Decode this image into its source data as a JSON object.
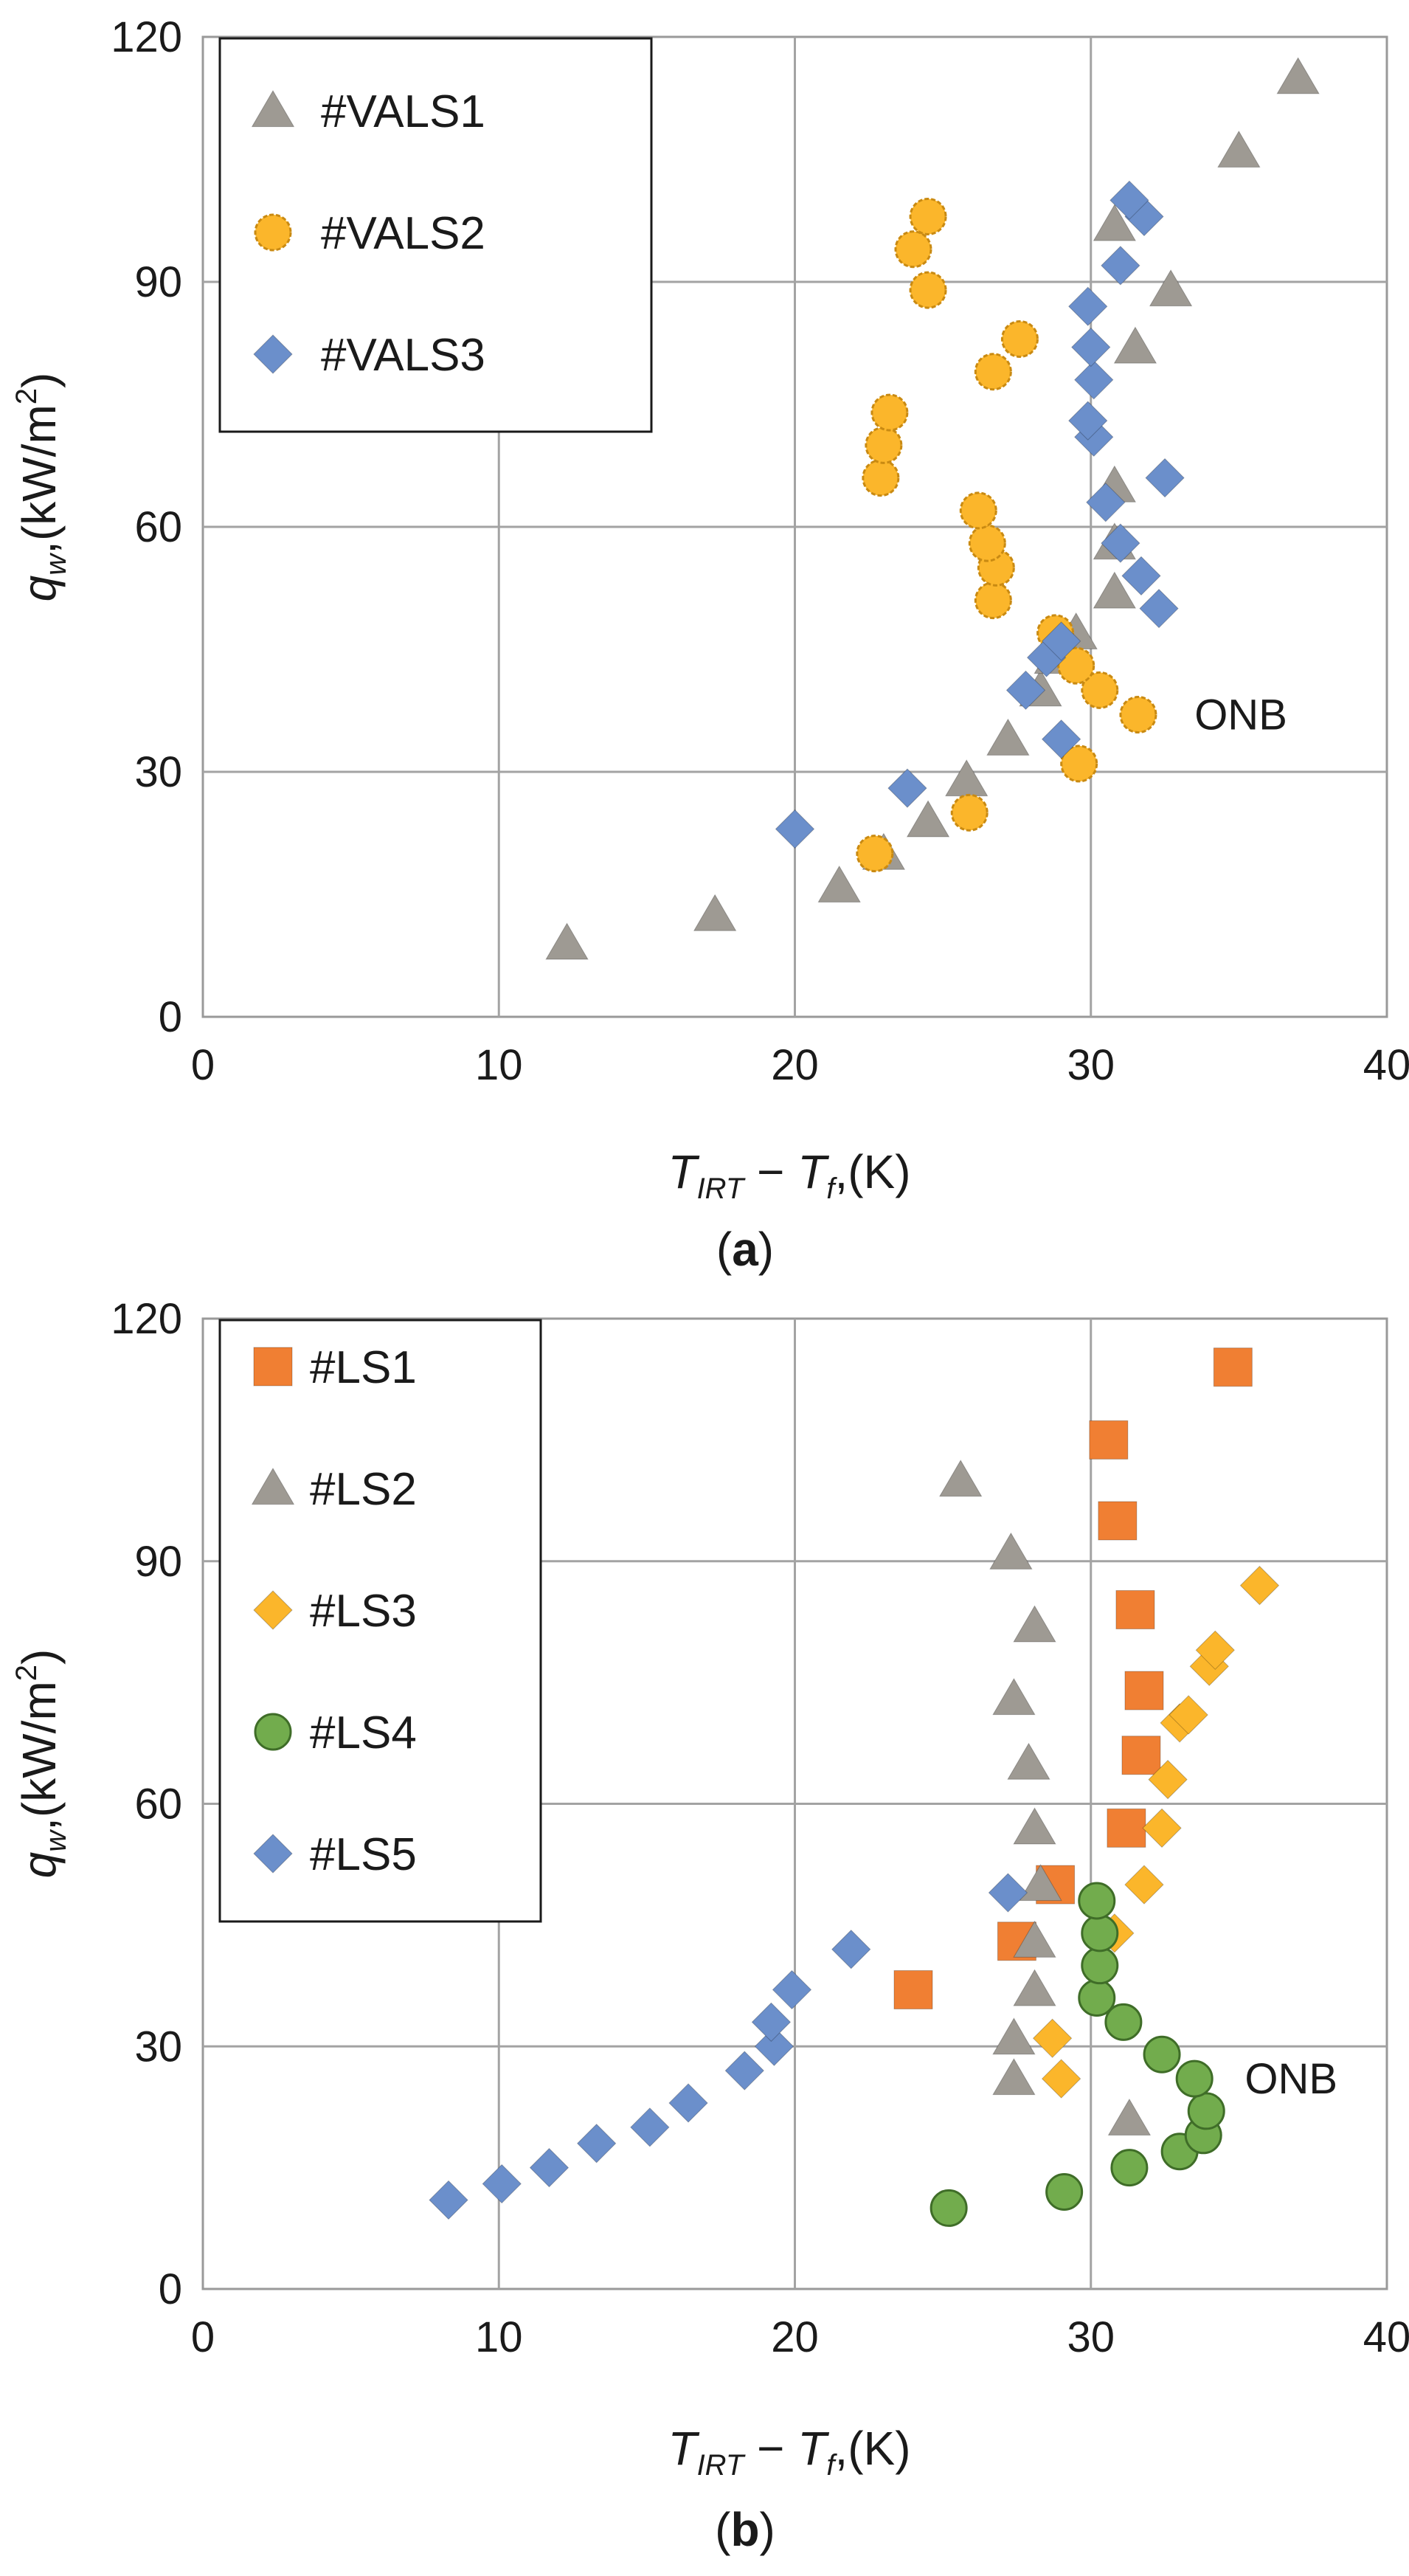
{
  "chart_data": [
    {
      "id": "a",
      "type": "scatter",
      "caption_letter": "a",
      "xlabel": {
        "T": "T",
        "sub1": "IRT",
        "dash": " − ",
        "T2": "T",
        "sub2": "f",
        "unit": ",(K)"
      },
      "ylabel": {
        "q": "q",
        "sub": "w",
        "unit": ",(kW/m",
        "sup": "2",
        "close": ")"
      },
      "xlim": [
        0,
        40
      ],
      "ylim": [
        0,
        120
      ],
      "xticks": [
        0,
        10,
        20,
        30,
        40
      ],
      "yticks": [
        0,
        30,
        60,
        90,
        120
      ],
      "grid": true,
      "legend_position": "top-left",
      "annotation": {
        "text": "ONB",
        "x": 33.5,
        "y": 37
      },
      "series": [
        {
          "name": "#VALS1",
          "marker": "triangle",
          "color": "#9e9a93",
          "points": [
            [
              12.3,
              9
            ],
            [
              17.3,
              12.5
            ],
            [
              21.5,
              16
            ],
            [
              23,
              20
            ],
            [
              24.5,
              24
            ],
            [
              25.8,
              29
            ],
            [
              27.2,
              34
            ],
            [
              28.3,
              40
            ],
            [
              28.8,
              44
            ],
            [
              29.5,
              47
            ],
            [
              30.8,
              52
            ],
            [
              30.8,
              58
            ],
            [
              30.8,
              65
            ],
            [
              31.5,
              82
            ],
            [
              32.7,
              89
            ],
            [
              30.8,
              97
            ],
            [
              35,
              106
            ],
            [
              37,
              115
            ]
          ]
        },
        {
          "name": "#VALS2",
          "marker": "circle",
          "color": "#fbb62b",
          "points": [
            [
              22.7,
              20
            ],
            [
              25.9,
              25
            ],
            [
              29.6,
              31
            ],
            [
              31.6,
              37
            ],
            [
              30.3,
              40
            ],
            [
              29.5,
              43
            ],
            [
              28.8,
              47
            ],
            [
              26.7,
              51
            ],
            [
              26.8,
              55
            ],
            [
              26.5,
              58
            ],
            [
              26.2,
              62
            ],
            [
              22.9,
              66
            ],
            [
              23,
              70
            ],
            [
              23.2,
              74
            ],
            [
              26.7,
              79
            ],
            [
              27.6,
              83
            ],
            [
              24.5,
              89
            ],
            [
              24,
              94
            ],
            [
              24.5,
              98
            ]
          ]
        },
        {
          "name": "#VALS3",
          "marker": "diamond",
          "color": "#6b8fcb",
          "points": [
            [
              20,
              23
            ],
            [
              23.8,
              28
            ],
            [
              29,
              34
            ],
            [
              27.8,
              40
            ],
            [
              28.5,
              44
            ],
            [
              29,
              46
            ],
            [
              32.3,
              50
            ],
            [
              31.7,
              54
            ],
            [
              31,
              58
            ],
            [
              30.5,
              63
            ],
            [
              32.5,
              66
            ],
            [
              30.1,
              71
            ],
            [
              29.9,
              73
            ],
            [
              30.1,
              78
            ],
            [
              30,
              82
            ],
            [
              29.9,
              87
            ],
            [
              31,
              92
            ],
            [
              31.8,
              98
            ],
            [
              31.3,
              100
            ]
          ]
        }
      ]
    },
    {
      "id": "b",
      "type": "scatter",
      "caption_letter": "b",
      "xlabel": {
        "T": "T",
        "sub1": "IRT",
        "dash": " − ",
        "T2": "T",
        "sub2": "f",
        "unit": ",(K)"
      },
      "ylabel": {
        "q": "q",
        "sub": "w",
        "unit": ",(kW/m",
        "sup": "2",
        "close": ")"
      },
      "xlim": [
        0,
        40
      ],
      "ylim": [
        0,
        120
      ],
      "xticks": [
        0,
        10,
        20,
        30,
        40
      ],
      "yticks": [
        0,
        30,
        60,
        90,
        120
      ],
      "grid": true,
      "legend_position": "top-left",
      "annotation": {
        "text": "ONB",
        "x": 35.2,
        "y": 26
      },
      "series": [
        {
          "name": "#LS1",
          "marker": "square",
          "color": "#f07f33",
          "points": [
            [
              24,
              37
            ],
            [
              27.5,
              43
            ],
            [
              28.8,
              50
            ],
            [
              31.2,
              57
            ],
            [
              31.7,
              66
            ],
            [
              31.8,
              74
            ],
            [
              31.5,
              84
            ],
            [
              30.9,
              95
            ],
            [
              30.6,
              105
            ],
            [
              34.8,
              114
            ]
          ]
        },
        {
          "name": "#LS2",
          "marker": "triangle",
          "color": "#9e9a93",
          "points": [
            [
              27.4,
              26
            ],
            [
              27.4,
              31
            ],
            [
              28.1,
              37
            ],
            [
              28.1,
              43
            ],
            [
              28.3,
              50
            ],
            [
              28.1,
              57
            ],
            [
              27.9,
              65
            ],
            [
              27.4,
              73
            ],
            [
              28.1,
              82
            ],
            [
              27.3,
              91
            ],
            [
              25.6,
              100
            ],
            [
              31.3,
              21
            ]
          ]
        },
        {
          "name": "#LS3",
          "marker": "diamond",
          "color": "#fbb62b",
          "points": [
            [
              29,
              26
            ],
            [
              28.7,
              31
            ],
            [
              30.8,
              44
            ],
            [
              31.8,
              50
            ],
            [
              32.4,
              57
            ],
            [
              32.6,
              63
            ],
            [
              33,
              70
            ],
            [
              33.3,
              71
            ],
            [
              34,
              77
            ],
            [
              34.2,
              79
            ],
            [
              35.7,
              87
            ]
          ]
        },
        {
          "name": "#LS4",
          "marker": "circle",
          "color": "#72ac4d",
          "points": [
            [
              25.2,
              10
            ],
            [
              29.1,
              12
            ],
            [
              31.3,
              15
            ],
            [
              33,
              17
            ],
            [
              33.8,
              19
            ],
            [
              33.9,
              22
            ],
            [
              33.5,
              26
            ],
            [
              32.4,
              29
            ],
            [
              31.1,
              33
            ],
            [
              30.2,
              36
            ],
            [
              30.3,
              40
            ],
            [
              30.3,
              44
            ],
            [
              30.2,
              48
            ]
          ]
        },
        {
          "name": "#LS5",
          "marker": "diamond",
          "color": "#6b8fcb",
          "points": [
            [
              8.3,
              11
            ],
            [
              10.1,
              13
            ],
            [
              11.7,
              15
            ],
            [
              13.3,
              18
            ],
            [
              15.1,
              20
            ],
            [
              16.4,
              23
            ],
            [
              18.3,
              27
            ],
            [
              19.3,
              30
            ],
            [
              19.2,
              33
            ],
            [
              19.9,
              37
            ],
            [
              21.9,
              42
            ],
            [
              27.2,
              49
            ]
          ]
        }
      ]
    }
  ]
}
